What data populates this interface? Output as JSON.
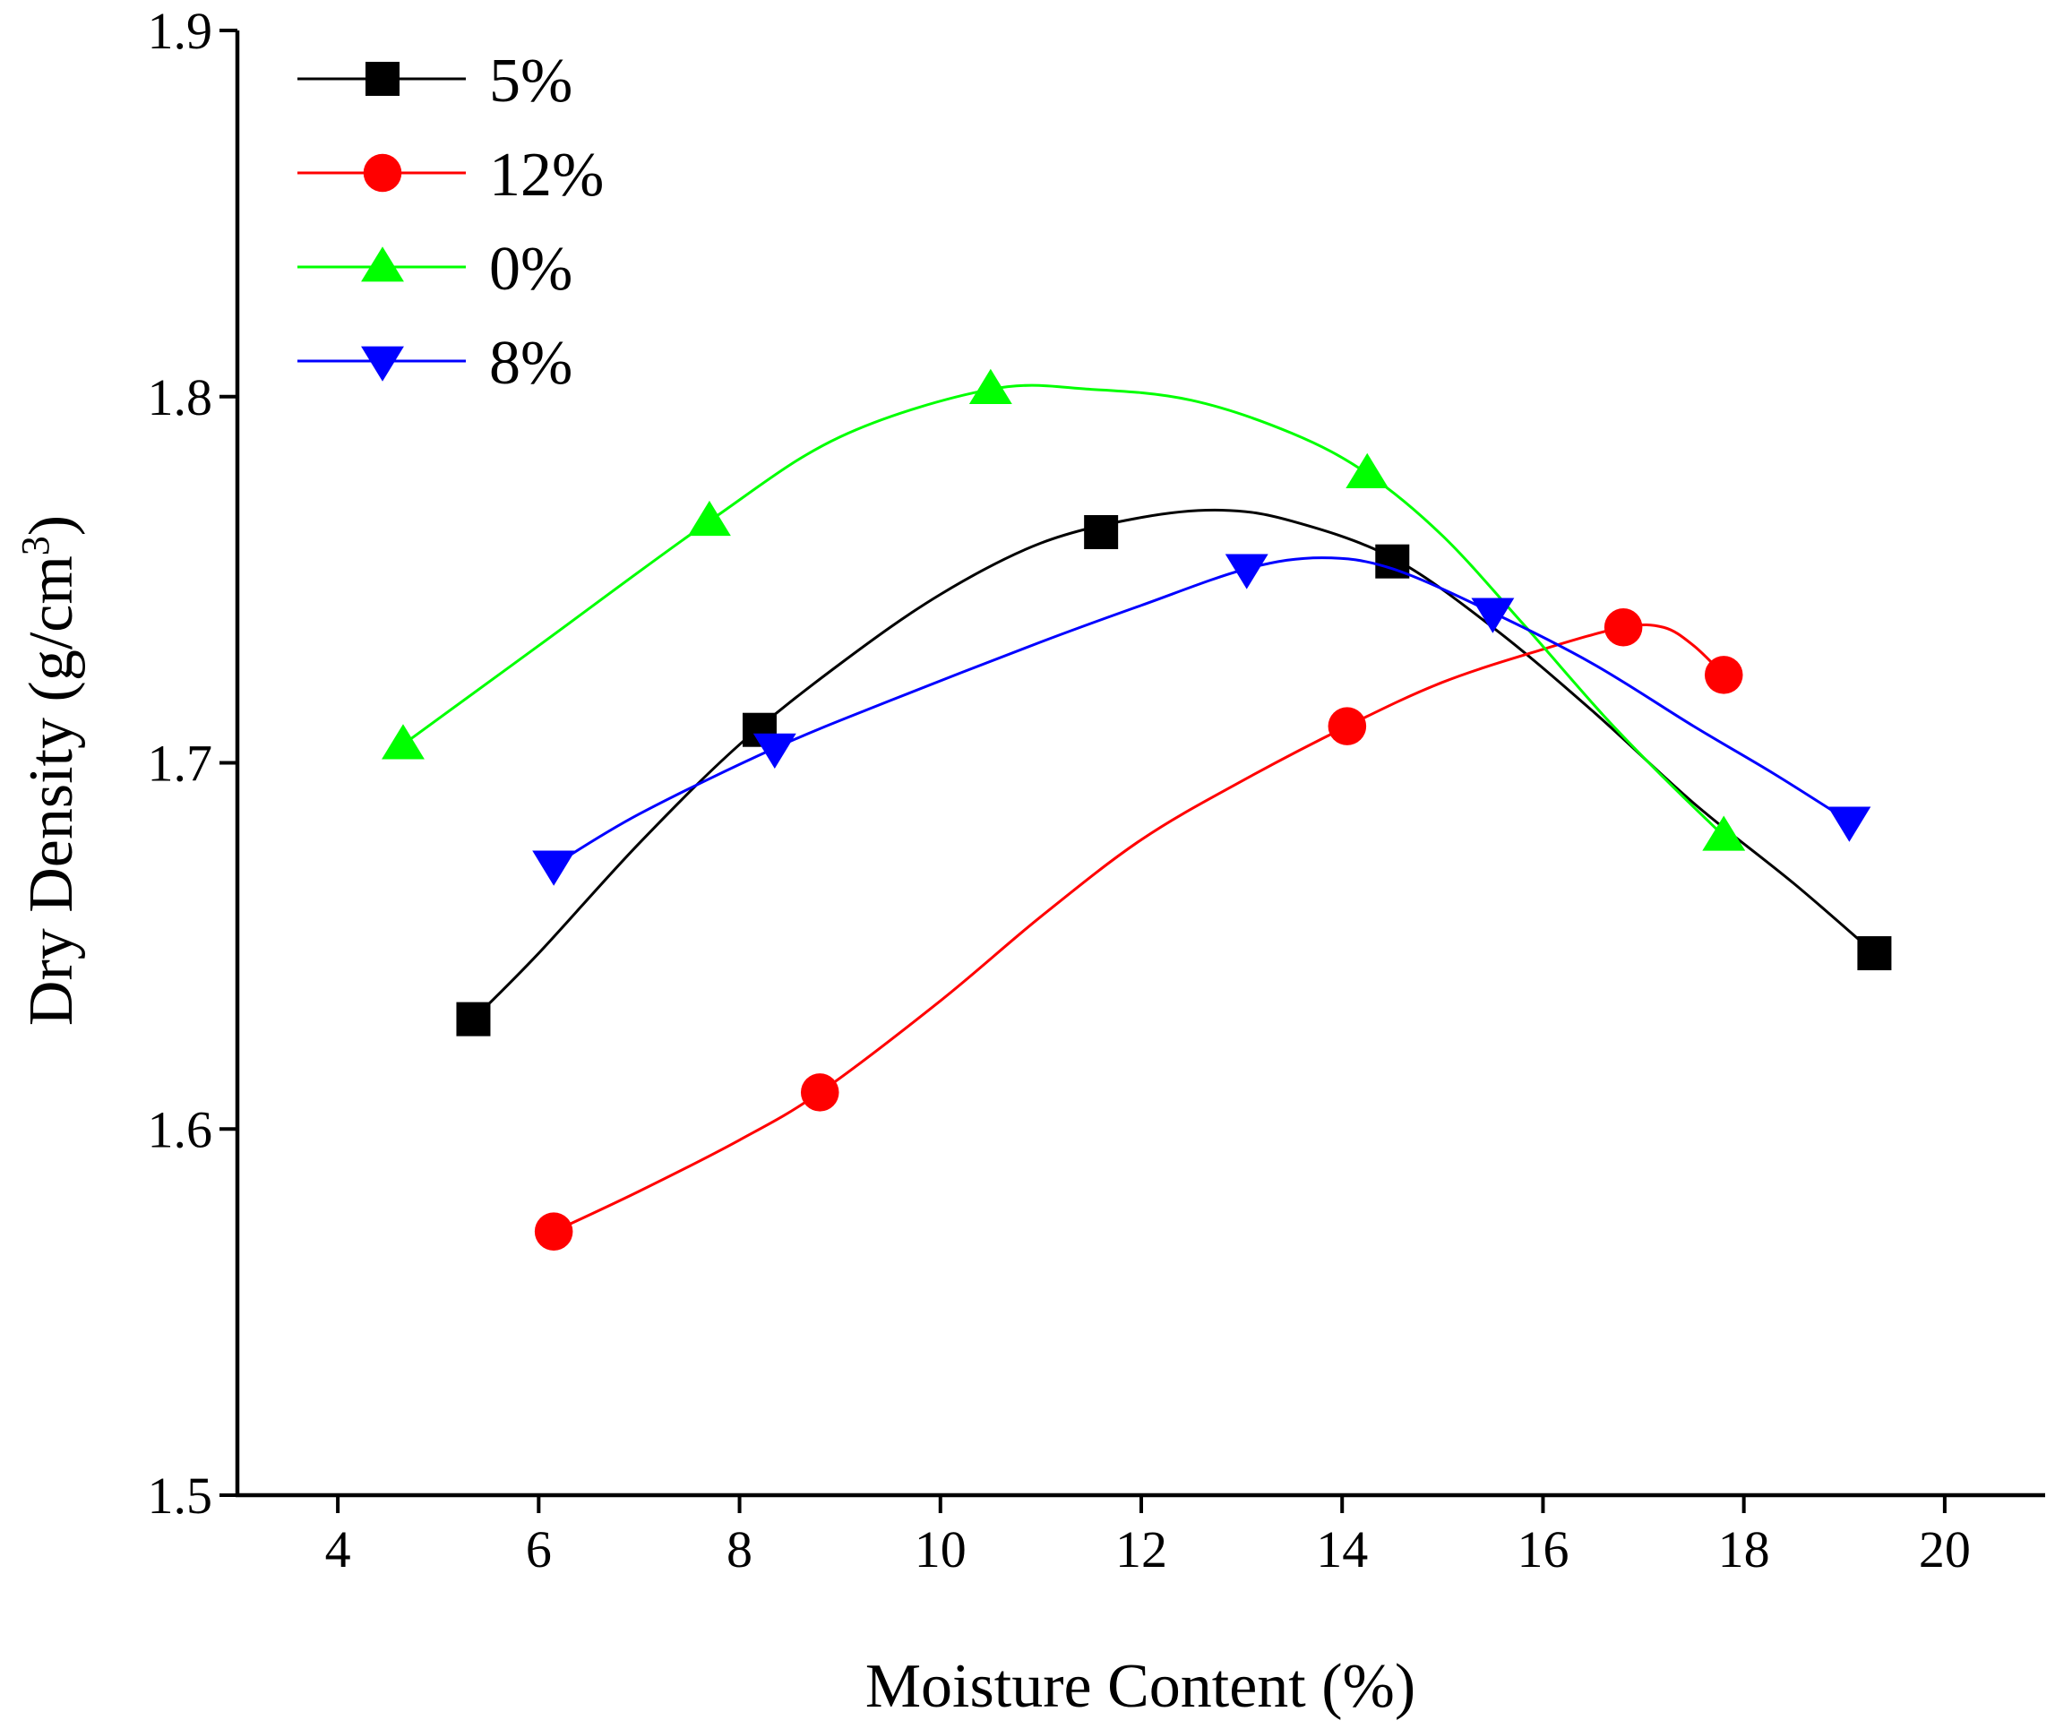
{
  "chart_data": {
    "type": "line",
    "xlabel": "Moisture Content (%)",
    "ylabel": "Dry Density (g/cm",
    "ylabel_superscript": "3",
    "ylabel_close": ")",
    "xlim": [
      3,
      21
    ],
    "ylim": [
      1.5,
      1.9
    ],
    "xticks": [
      4,
      6,
      8,
      10,
      12,
      14,
      16,
      18,
      20
    ],
    "xtick_labels": [
      "4",
      "6",
      "8",
      "10",
      "12",
      "14",
      "16",
      "18",
      "20"
    ],
    "yticks": [
      1.5,
      1.6,
      1.7,
      1.8,
      1.9
    ],
    "ytick_labels": [
      "1.5",
      "1.6",
      "1.7",
      "1.8",
      "1.9"
    ],
    "legend_position": "top-left",
    "series": [
      {
        "name": "5%",
        "color": "#000000",
        "marker": "square",
        "x": [
          5.35,
          8.2,
          11.6,
          14.5,
          19.3
        ],
        "y": [
          1.63,
          1.709,
          1.763,
          1.755,
          1.648
        ],
        "curve": [
          [
            5.35,
            1.63
          ],
          [
            6,
            1.648
          ],
          [
            7,
            1.678
          ],
          [
            8,
            1.705
          ],
          [
            9,
            1.727
          ],
          [
            10,
            1.746
          ],
          [
            11,
            1.76
          ],
          [
            12,
            1.767
          ],
          [
            12.8,
            1.769
          ],
          [
            13.5,
            1.766
          ],
          [
            14.5,
            1.756
          ],
          [
            15.5,
            1.737
          ],
          [
            16.5,
            1.714
          ],
          [
            17.5,
            1.689
          ],
          [
            18.5,
            1.667
          ],
          [
            19.3,
            1.648
          ]
        ]
      },
      {
        "name": "12%",
        "color": "#ff0000",
        "marker": "circle",
        "x": [
          6.15,
          8.8,
          14.05,
          16.8,
          17.8
        ],
        "y": [
          1.572,
          1.61,
          1.71,
          1.737,
          1.724
        ],
        "curve": [
          [
            6.15,
            1.572
          ],
          [
            7,
            1.583
          ],
          [
            8,
            1.597
          ],
          [
            8.8,
            1.61
          ],
          [
            10,
            1.635
          ],
          [
            11,
            1.658
          ],
          [
            12,
            1.679
          ],
          [
            13,
            1.695
          ],
          [
            14.05,
            1.71
          ],
          [
            15,
            1.722
          ],
          [
            16,
            1.731
          ],
          [
            16.8,
            1.737
          ],
          [
            17.2,
            1.737
          ],
          [
            17.5,
            1.732
          ],
          [
            17.8,
            1.724
          ]
        ]
      },
      {
        "name": "0%",
        "color": "#00ff00",
        "marker": "triangle-up",
        "x": [
          4.65,
          7.7,
          10.5,
          14.25,
          17.8
        ],
        "y": [
          1.705,
          1.766,
          1.802,
          1.779,
          1.68
        ],
        "curve": [
          [
            4.65,
            1.705
          ],
          [
            6,
            1.732
          ],
          [
            7.7,
            1.766
          ],
          [
            9,
            1.789
          ],
          [
            10.5,
            1.802
          ],
          [
            11.5,
            1.802
          ],
          [
            12.5,
            1.799
          ],
          [
            13.5,
            1.79
          ],
          [
            14.25,
            1.779
          ],
          [
            15,
            1.762
          ],
          [
            15.8,
            1.738
          ],
          [
            16.6,
            1.713
          ],
          [
            17.2,
            1.696
          ],
          [
            17.8,
            1.68
          ]
        ]
      },
      {
        "name": "8%",
        "color": "#0000ff",
        "marker": "triangle-down",
        "x": [
          6.15,
          8.35,
          13.05,
          15.5,
          19.05
        ],
        "y": [
          1.672,
          1.704,
          1.753,
          1.741,
          1.684
        ],
        "curve": [
          [
            6.15,
            1.672
          ],
          [
            7,
            1.686
          ],
          [
            8.35,
            1.704
          ],
          [
            9.5,
            1.717
          ],
          [
            11,
            1.733
          ],
          [
            12,
            1.743
          ],
          [
            13.05,
            1.753
          ],
          [
            13.8,
            1.756
          ],
          [
            14.5,
            1.753
          ],
          [
            15.5,
            1.741
          ],
          [
            16.5,
            1.727
          ],
          [
            17.5,
            1.71
          ],
          [
            18.3,
            1.697
          ],
          [
            19.05,
            1.684
          ]
        ]
      }
    ]
  }
}
